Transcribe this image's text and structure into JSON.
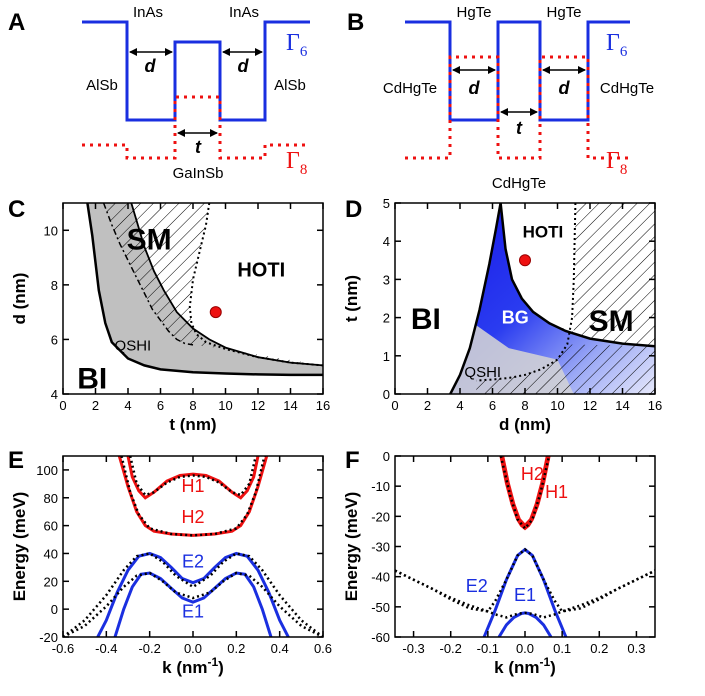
{
  "colors": {
    "blue": "#1a2fe0",
    "red": "#ee1111",
    "black": "#000000",
    "gray": "#c0c0c0"
  },
  "panels": {
    "A": {
      "letter": "A",
      "gamma6": "Γ",
      "gamma6_sub": "6",
      "gamma8": "Γ",
      "gamma8_sub": "8",
      "labels": {
        "well_left": "InAs",
        "well_right": "InAs",
        "barrier_left": "AlSb",
        "barrier_right": "AlSb",
        "center": "GaInSb",
        "d": "d",
        "t": "t"
      }
    },
    "B": {
      "letter": "B",
      "gamma6": "Γ",
      "gamma6_sub": "6",
      "gamma8": "Γ",
      "gamma8_sub": "8",
      "labels": {
        "well_left": "HgTe",
        "well_right": "HgTe",
        "barrier_left": "CdHgTe",
        "barrier_right": "CdHgTe",
        "center": "CdHgTe",
        "d": "d",
        "t": "t"
      }
    }
  },
  "chart_data": [
    {
      "panel": "C",
      "type": "area",
      "xlabel": "t (nm)",
      "ylabel": "d (nm)",
      "xlim": [
        0,
        16
      ],
      "ylim": [
        4,
        11
      ],
      "xticks": [
        "0",
        "2",
        "4",
        "6",
        "8",
        "10",
        "12",
        "14",
        "16"
      ],
      "yticks": [
        "4",
        "6",
        "8",
        "10"
      ],
      "regions": [
        "SM",
        "HOTI",
        "QSHI",
        "BI"
      ],
      "point": {
        "x": 9.4,
        "y": 7.0
      },
      "curves": {
        "BI_boundary": {
          "x": [
            1.5,
            1.8,
            2.2,
            2.6,
            3.0,
            4.0,
            5.0,
            6.0,
            8.0,
            10.0,
            12.0,
            14.0,
            16.0
          ],
          "y": [
            11.0,
            9.8,
            7.8,
            6.6,
            5.9,
            5.3,
            5.05,
            4.9,
            4.8,
            4.75,
            4.72,
            4.7,
            4.7
          ]
        },
        "SM_boundary": {
          "x": [
            4.2,
            4.6,
            5.0,
            5.6,
            6.2,
            7.0,
            8.0,
            9.0,
            10.0,
            12.0,
            14.0,
            16.0
          ],
          "y": [
            11.0,
            10.2,
            9.4,
            8.5,
            7.8,
            7.0,
            6.4,
            6.0,
            5.7,
            5.35,
            5.15,
            5.05
          ]
        },
        "dashdot": {
          "x": [
            2.5,
            3.0,
            3.5,
            4.0,
            4.5,
            5.0,
            5.5,
            6.0,
            6.5,
            7.0,
            7.5,
            8.0
          ],
          "y": [
            11.0,
            10.2,
            9.5,
            8.9,
            8.3,
            7.7,
            7.1,
            6.7,
            6.3,
            6.0,
            5.85,
            5.8
          ]
        },
        "dotted": {
          "x": [
            9.0,
            8.8,
            8.4,
            8.0,
            7.8,
            7.9,
            8.2,
            8.8,
            10.0,
            12.0,
            14.0,
            16.0
          ],
          "y": [
            11.0,
            10.2,
            9.2,
            8.2,
            7.2,
            6.6,
            6.2,
            5.9,
            5.65,
            5.35,
            5.15,
            5.05
          ]
        }
      }
    },
    {
      "panel": "D",
      "type": "area",
      "xlabel": "d (nm)",
      "ylabel": "t (nm)",
      "xlim": [
        0,
        16
      ],
      "ylim": [
        0,
        5
      ],
      "xticks": [
        "0",
        "2",
        "4",
        "6",
        "8",
        "10",
        "12",
        "14",
        "16"
      ],
      "yticks": [
        "0",
        "1",
        "2",
        "3",
        "4",
        "5"
      ],
      "regions": [
        "HOTI",
        "BI",
        "BG",
        "SM",
        "QSHI"
      ],
      "point": {
        "x": 8.0,
        "y": 3.5
      },
      "curves": {
        "BI_boundary": {
          "x": [
            3.4,
            4.0,
            4.6,
            5.2,
            5.8,
            6.2,
            6.5
          ],
          "y": [
            0.0,
            0.5,
            1.2,
            2.2,
            3.4,
            4.3,
            5.0
          ]
        },
        "SM_boundary": {
          "x": [
            6.5,
            6.8,
            7.2,
            7.8,
            8.5,
            9.5,
            10.5,
            12.0,
            14.0,
            16.0
          ],
          "y": [
            5.0,
            3.8,
            3.0,
            2.5,
            2.15,
            1.85,
            1.65,
            1.45,
            1.32,
            1.25
          ]
        },
        "dotted": {
          "x": [
            11.1,
            11.05,
            11.0,
            10.9,
            10.6,
            10.0,
            9.0,
            8.0,
            7.0,
            6.0,
            5.0
          ],
          "y": [
            5.0,
            4.0,
            3.0,
            2.0,
            1.3,
            0.9,
            0.65,
            0.5,
            0.42,
            0.38,
            0.35
          ]
        }
      }
    },
    {
      "panel": "E",
      "type": "line",
      "xlabel": "k (nm⁻¹)",
      "ylabel": "Energy (meV)",
      "xlim": [
        -0.6,
        0.6
      ],
      "ylim": [
        -20,
        110
      ],
      "xticks": [
        "-0.6",
        "-0.4",
        "-0.2",
        "0.0",
        "0.2",
        "0.4",
        "0.6"
      ],
      "yticks": [
        "-20",
        "0",
        "20",
        "40",
        "60",
        "80",
        "100"
      ],
      "series": [
        {
          "name": "H1",
          "x": [
            -0.3,
            -0.28,
            -0.25,
            -0.22,
            -0.18,
            -0.12,
            -0.06,
            0.0,
            0.06,
            0.12,
            0.18,
            0.22,
            0.25,
            0.28,
            0.3
          ],
          "y": [
            110,
            95,
            85,
            80,
            84,
            92,
            96,
            97,
            96,
            92,
            84,
            80,
            85,
            95,
            110
          ]
        },
        {
          "name": "H2",
          "x": [
            -0.34,
            -0.3,
            -0.26,
            -0.22,
            -0.18,
            -0.1,
            0.0,
            0.1,
            0.18,
            0.22,
            0.26,
            0.3,
            0.34
          ],
          "y": [
            110,
            88,
            70,
            60,
            56,
            54,
            53,
            54,
            56,
            60,
            70,
            88,
            110
          ]
        },
        {
          "name": "E2",
          "x": [
            -0.44,
            -0.4,
            -0.35,
            -0.3,
            -0.25,
            -0.2,
            -0.15,
            -0.1,
            -0.05,
            0.0,
            0.05,
            0.1,
            0.15,
            0.2,
            0.25,
            0.3,
            0.35,
            0.4,
            0.44
          ],
          "y": [
            -20,
            -8,
            12,
            28,
            38,
            40,
            37,
            30,
            22,
            19,
            22,
            30,
            37,
            40,
            38,
            28,
            12,
            -8,
            -20
          ]
        },
        {
          "name": "E1",
          "x": [
            -0.36,
            -0.32,
            -0.28,
            -0.24,
            -0.2,
            -0.15,
            -0.1,
            -0.05,
            0.0,
            0.05,
            0.1,
            0.15,
            0.2,
            0.24,
            0.28,
            0.32,
            0.36
          ],
          "y": [
            -20,
            0,
            16,
            25,
            26,
            22,
            15,
            8,
            5,
            8,
            15,
            22,
            26,
            25,
            16,
            0,
            -20
          ]
        }
      ],
      "dotted_series": [
        {
          "x": [
            -0.29,
            -0.26,
            -0.22,
            -0.18,
            -0.12,
            -0.06,
            0.0,
            0.06,
            0.12,
            0.18,
            0.22,
            0.26,
            0.29
          ],
          "y": [
            110,
            90,
            82,
            84,
            91,
            95,
            96,
            95,
            91,
            84,
            82,
            90,
            110
          ]
        },
        {
          "x": [
            -0.33,
            -0.29,
            -0.25,
            -0.2,
            -0.1,
            0.0,
            0.1,
            0.2,
            0.25,
            0.29,
            0.33
          ],
          "y": [
            110,
            84,
            68,
            58,
            54,
            53,
            54,
            58,
            68,
            84,
            110
          ]
        },
        {
          "x": [
            -0.6,
            -0.5,
            -0.4,
            -0.32,
            -0.26,
            -0.2,
            -0.14,
            -0.08,
            0.0,
            0.08,
            0.14,
            0.2,
            0.26,
            0.32,
            0.4,
            0.5,
            0.6
          ],
          "y": [
            -20,
            -8,
            10,
            28,
            38,
            40,
            34,
            24,
            16,
            24,
            34,
            40,
            38,
            28,
            10,
            -8,
            -20
          ]
        },
        {
          "x": [
            -0.6,
            -0.5,
            -0.4,
            -0.32,
            -0.26,
            -0.2,
            -0.14,
            -0.08,
            0.0,
            0.08,
            0.14,
            0.2,
            0.26,
            0.32,
            0.4,
            0.5,
            0.6
          ],
          "y": [
            -20,
            -12,
            2,
            16,
            24,
            26,
            20,
            12,
            8,
            12,
            20,
            26,
            24,
            16,
            2,
            -12,
            -20
          ]
        }
      ]
    },
    {
      "panel": "F",
      "type": "line",
      "xlabel": "k (nm⁻¹)",
      "ylabel": "Energy (meV)",
      "xlim": [
        -0.35,
        0.35
      ],
      "ylim": [
        -60,
        0
      ],
      "xticks": [
        "-0.3",
        "-0.2",
        "-0.1",
        "0.0",
        "0.1",
        "0.2",
        "0.3"
      ],
      "yticks": [
        "-60",
        "-50",
        "-40",
        "-30",
        "-20",
        "-10",
        "0"
      ],
      "series": [
        {
          "name": "H2",
          "x": [
            -0.065,
            -0.05,
            -0.035,
            -0.02,
            -0.01,
            0.0,
            0.01,
            0.02,
            0.035,
            0.05,
            0.065
          ],
          "y": [
            0,
            -9,
            -16,
            -21,
            -23,
            -24,
            -23,
            -21,
            -16,
            -9,
            0
          ]
        },
        {
          "name": "H1",
          "x": [
            -0.06,
            -0.045,
            -0.03,
            -0.015,
            0.0,
            0.015,
            0.03,
            0.045,
            0.06
          ],
          "y": [
            0,
            -9,
            -16,
            -21,
            -23,
            -21,
            -16,
            -9,
            0
          ]
        },
        {
          "name": "E2",
          "x": [
            -0.11,
            -0.08,
            -0.05,
            -0.02,
            0.0,
            0.02,
            0.05,
            0.08,
            0.11
          ],
          "y": [
            -60,
            -51,
            -41,
            -33,
            -31,
            -33,
            -41,
            -51,
            -60
          ]
        },
        {
          "name": "E1",
          "x": [
            -0.07,
            -0.05,
            -0.03,
            -0.01,
            0.0,
            0.01,
            0.03,
            0.05,
            0.07
          ],
          "y": [
            -60,
            -56,
            -53.5,
            -52.2,
            -52,
            -52.2,
            -53.5,
            -56,
            -60
          ]
        }
      ],
      "dotted_series": [
        {
          "x": [
            -0.065,
            -0.04,
            -0.02,
            0.0,
            0.02,
            0.04,
            0.065
          ],
          "y": [
            0,
            -13,
            -21,
            -24,
            -21,
            -13,
            0
          ]
        },
        {
          "x": [
            -0.35,
            -0.3,
            -0.25,
            -0.2,
            -0.15,
            -0.1,
            -0.08,
            -0.05,
            -0.02,
            0.0,
            0.02,
            0.05,
            0.08,
            0.1,
            0.15,
            0.2,
            0.25,
            0.3,
            0.35
          ],
          "y": [
            -38,
            -41,
            -44,
            -47.5,
            -50.5,
            -51.5,
            -48,
            -41,
            -33,
            -31,
            -33,
            -41,
            -48,
            -51.5,
            -50.5,
            -47.5,
            -44,
            -41,
            -38
          ]
        },
        {
          "x": [
            -0.35,
            -0.3,
            -0.25,
            -0.2,
            -0.15,
            -0.1,
            -0.08,
            -0.05,
            -0.02,
            0.0,
            0.02,
            0.05,
            0.08,
            0.1,
            0.15,
            0.2,
            0.25,
            0.3,
            0.35
          ],
          "y": [
            -38,
            -41,
            -44,
            -47,
            -49.5,
            -51.5,
            -52.5,
            -53.5,
            -52.3,
            -52,
            -52.3,
            -53.5,
            -52.5,
            -51.5,
            -49.5,
            -47,
            -44,
            -41,
            -38
          ]
        }
      ]
    }
  ]
}
